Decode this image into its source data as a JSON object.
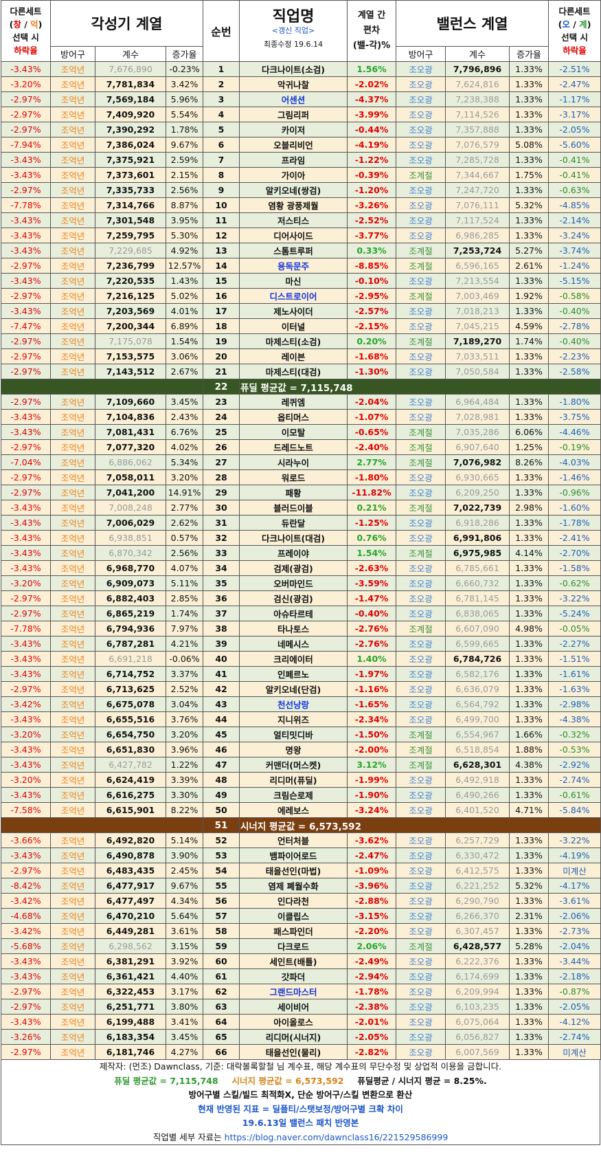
{
  "header": {
    "left_select": [
      "다른세트",
      "창",
      "/",
      "억",
      "선택 시",
      "하락율"
    ],
    "awaken_title": "각성기 계열",
    "order": "순번",
    "job_title": "직업명",
    "job_sub1": "<갱신 직업>",
    "job_sub2": "최종수정 19.6.14",
    "diff_title": [
      "계열 간",
      "편차",
      "(밸-각)%"
    ],
    "balance_title": "밸런스 계열",
    "right_select": [
      "다른세트",
      "오",
      "/",
      "계",
      "선택 시",
      "하락율"
    ],
    "sub_armor": "방어구",
    "sub_coef": "계수",
    "sub_rate": "증가율"
  },
  "rows": [
    [
      "-3.43%",
      "조억년",
      "7,676,890",
      "g",
      "-0.23%",
      "1",
      "다크나이트(소검)",
      "k",
      "1.56%",
      "조오광",
      "7,796,896",
      "b",
      "1.33%",
      "-2.51%"
    ],
    [
      "-3.20%",
      "조억년",
      "7,781,834",
      "b",
      "3.42%",
      "2",
      "악귀나찰",
      "k",
      "-2.02%",
      "조오광",
      "7,624,816",
      "g",
      "1.33%",
      "-2.47%"
    ],
    [
      "-2.97%",
      "조억년",
      "7,569,184",
      "b",
      "5.96%",
      "3",
      "어센션",
      "b",
      "-4.37%",
      "조오광",
      "7,238,388",
      "g",
      "1.33%",
      "-1.17%"
    ],
    [
      "-2.97%",
      "조억년",
      "7,409,920",
      "b",
      "5.54%",
      "4",
      "그림리퍼",
      "k",
      "-3.99%",
      "조오광",
      "7,114,526",
      "g",
      "1.33%",
      "-3.17%"
    ],
    [
      "-2.97%",
      "조억년",
      "7,390,292",
      "b",
      "1.78%",
      "5",
      "카이저",
      "k",
      "-0.44%",
      "조오광",
      "7,357,888",
      "g",
      "1.33%",
      "-2.05%"
    ],
    [
      "-7.94%",
      "조억년",
      "7,386,024",
      "b",
      "9.67%",
      "6",
      "오블리비언",
      "k",
      "-4.19%",
      "조오광",
      "7,076,579",
      "g",
      "5.08%",
      "-5.60%"
    ],
    [
      "-3.43%",
      "조억년",
      "7,375,921",
      "b",
      "2.59%",
      "7",
      "프라임",
      "k",
      "-1.22%",
      "조오광",
      "7,285,728",
      "g",
      "1.33%",
      "-0.41%"
    ],
    [
      "-3.43%",
      "조억년",
      "7,373,601",
      "b",
      "2.15%",
      "8",
      "가이아",
      "k",
      "-0.39%",
      "조계절",
      "7,344,667",
      "g",
      "1.75%",
      "-0.41%"
    ],
    [
      "-2.97%",
      "조억년",
      "7,335,733",
      "b",
      "2.56%",
      "9",
      "알키오네(쌍검)",
      "k",
      "-1.20%",
      "조오광",
      "7,247,720",
      "g",
      "1.33%",
      "-0.63%"
    ],
    [
      "-7.78%",
      "조억년",
      "7,314,766",
      "b",
      "8.87%",
      "10",
      "염황 광풍제월",
      "k",
      "-3.26%",
      "조오광",
      "7,076,111",
      "g",
      "5.32%",
      "-4.85%"
    ],
    [
      "-3.43%",
      "조억년",
      "7,301,548",
      "b",
      "3.95%",
      "11",
      "저스티스",
      "k",
      "-2.52%",
      "조오광",
      "7,117,524",
      "g",
      "1.33%",
      "-2.14%"
    ],
    [
      "-3.43%",
      "조억년",
      "7,259,795",
      "b",
      "5.30%",
      "12",
      "디어사이드",
      "k",
      "-3.77%",
      "조오광",
      "6,986,285",
      "g",
      "1.33%",
      "-3.24%"
    ],
    [
      "-3.43%",
      "조억년",
      "7,229,685",
      "g",
      "4.92%",
      "13",
      "스톰트루퍼",
      "k",
      "0.33%",
      "조계절",
      "7,253,724",
      "b",
      "5.27%",
      "-3.74%"
    ],
    [
      "-2.97%",
      "조억년",
      "7,236,799",
      "b",
      "12.57%",
      "14",
      "용독문주",
      "b",
      "-8.85%",
      "조계절",
      "6,596,165",
      "g",
      "2.61%",
      "-1.24%"
    ],
    [
      "-3.43%",
      "조억년",
      "7,220,535",
      "b",
      "1.43%",
      "15",
      "마신",
      "k",
      "-0.10%",
      "조오광",
      "7,213,554",
      "g",
      "1.33%",
      "-5.15%"
    ],
    [
      "-2.97%",
      "조억년",
      "7,216,125",
      "b",
      "5.02%",
      "16",
      "디스트로이어",
      "b",
      "-2.95%",
      "조계절",
      "7,003,469",
      "g",
      "1.92%",
      "-0.58%"
    ],
    [
      "-3.43%",
      "조억년",
      "7,203,569",
      "b",
      "4.01%",
      "17",
      "제노사이더",
      "k",
      "-2.57%",
      "조오광",
      "7,018,213",
      "g",
      "1.33%",
      "-0.40%"
    ],
    [
      "-7.47%",
      "조억년",
      "7,200,344",
      "b",
      "6.89%",
      "18",
      "이터널",
      "k",
      "-2.15%",
      "조오광",
      "7,045,215",
      "g",
      "4.59%",
      "-2.78%"
    ],
    [
      "-2.97%",
      "조억년",
      "7,175,078",
      "g",
      "1.54%",
      "19",
      "마제스티(소검)",
      "k",
      "0.20%",
      "조계절",
      "7,189,270",
      "b",
      "1.74%",
      "-0.40%"
    ],
    [
      "-2.97%",
      "조억년",
      "7,153,575",
      "b",
      "3.06%",
      "20",
      "레이븐",
      "k",
      "-1.68%",
      "조오광",
      "7,033,511",
      "g",
      "1.33%",
      "-2.23%"
    ],
    [
      "-2.97%",
      "조억년",
      "7,143,512",
      "b",
      "2.67%",
      "21",
      "마제스티(대검)",
      "k",
      "-1.30%",
      "조오광",
      "7,050,584",
      "g",
      "1.33%",
      "-2.58%"
    ],
    [
      "AVG1"
    ],
    [
      "-2.97%",
      "조억년",
      "7,109,660",
      "b",
      "3.45%",
      "23",
      "레퀴엠",
      "k",
      "-2.04%",
      "조오광",
      "6,964,484",
      "g",
      "1.33%",
      "-1.80%"
    ],
    [
      "-3.43%",
      "조억년",
      "7,104,836",
      "b",
      "2.43%",
      "24",
      "옵티머스",
      "k",
      "-1.07%",
      "조오광",
      "7,028,981",
      "g",
      "1.33%",
      "-3.75%"
    ],
    [
      "-3.43%",
      "조억년",
      "7,081,431",
      "b",
      "6.76%",
      "25",
      "이모탈",
      "k",
      "-0.65%",
      "조계절",
      "7,035,286",
      "g",
      "6.06%",
      "-4.46%"
    ],
    [
      "-2.97%",
      "조억년",
      "7,077,320",
      "b",
      "4.02%",
      "26",
      "드레드노트",
      "k",
      "-2.40%",
      "조계절",
      "6,907,640",
      "g",
      "1.25%",
      "-0.19%"
    ],
    [
      "-7.04%",
      "조억년",
      "6,886,062",
      "g",
      "5.34%",
      "27",
      "시라누이",
      "k",
      "2.77%",
      "조계절",
      "7,076,982",
      "b",
      "8.26%",
      "-4.03%"
    ],
    [
      "-2.97%",
      "조억년",
      "7,058,011",
      "b",
      "3.20%",
      "28",
      "워로드",
      "k",
      "-1.80%",
      "조오광",
      "6,930,665",
      "g",
      "1.33%",
      "-1.46%"
    ],
    [
      "-2.97%",
      "조억년",
      "7,041,200",
      "b",
      "14.91%",
      "29",
      "패황",
      "k",
      "-11.82%",
      "조오광",
      "6,209,250",
      "g",
      "1.33%",
      "-0.96%"
    ],
    [
      "-3.43%",
      "조억년",
      "7,008,248",
      "g",
      "2.77%",
      "30",
      "블러드이블",
      "k",
      "0.21%",
      "조계절",
      "7,022,739",
      "b",
      "2.98%",
      "-1.60%"
    ],
    [
      "-3.43%",
      "조억년",
      "7,006,029",
      "b",
      "2.62%",
      "31",
      "듀란달",
      "k",
      "-1.25%",
      "조오광",
      "6,918,286",
      "g",
      "1.33%",
      "-1.78%"
    ],
    [
      "-3.43%",
      "조억년",
      "6,938,851",
      "g",
      "0.57%",
      "32",
      "다크나이트(대검)",
      "k",
      "0.76%",
      "조오광",
      "6,991,806",
      "b",
      "1.33%",
      "-2.41%"
    ],
    [
      "-3.43%",
      "조억년",
      "6,870,342",
      "g",
      "2.56%",
      "33",
      "프레이야",
      "k",
      "1.54%",
      "조계절",
      "6,975,985",
      "b",
      "4.14%",
      "-2.70%"
    ],
    [
      "-3.43%",
      "조억년",
      "6,968,770",
      "b",
      "4.07%",
      "34",
      "검제(광검)",
      "k",
      "-2.63%",
      "조오광",
      "6,785,661",
      "g",
      "1.33%",
      "-1.58%"
    ],
    [
      "-3.20%",
      "조억년",
      "6,909,073",
      "b",
      "5.11%",
      "35",
      "오버마인드",
      "k",
      "-3.59%",
      "조오광",
      "6,660,732",
      "g",
      "1.33%",
      "-0.62%"
    ],
    [
      "-2.97%",
      "조억년",
      "6,882,403",
      "b",
      "2.85%",
      "36",
      "검신(광검)",
      "k",
      "-1.47%",
      "조오광",
      "6,781,145",
      "g",
      "1.33%",
      "-3.22%"
    ],
    [
      "-2.97%",
      "조억년",
      "6,865,219",
      "b",
      "1.74%",
      "37",
      "아슈타르테",
      "k",
      "-0.40%",
      "조오광",
      "6,838,065",
      "g",
      "1.33%",
      "-5.24%"
    ],
    [
      "-7.78%",
      "조억년",
      "6,794,936",
      "b",
      "7.97%",
      "38",
      "타나토스",
      "k",
      "-2.76%",
      "조계절",
      "6,607,090",
      "g",
      "4.98%",
      "-0.05%"
    ],
    [
      "-3.43%",
      "조억년",
      "6,787,281",
      "b",
      "4.21%",
      "39",
      "네메시스",
      "k",
      "-2.76%",
      "조오광",
      "6,599,665",
      "g",
      "1.33%",
      "-2.27%"
    ],
    [
      "-3.43%",
      "조억년",
      "6,691,218",
      "g",
      "-0.06%",
      "40",
      "크리에이터",
      "k",
      "1.40%",
      "조오광",
      "6,784,726",
      "b",
      "1.33%",
      "-1.51%"
    ],
    [
      "-3.43%",
      "조억년",
      "6,714,752",
      "b",
      "3.37%",
      "41",
      "인페르노",
      "k",
      "-1.97%",
      "조오광",
      "6,582,176",
      "g",
      "1.33%",
      "-1.61%"
    ],
    [
      "-2.97%",
      "조억년",
      "6,713,625",
      "b",
      "2.52%",
      "42",
      "알키오네(단검)",
      "k",
      "-1.16%",
      "조오광",
      "6,636,079",
      "g",
      "1.33%",
      "-1.63%"
    ],
    [
      "-3.42%",
      "조억년",
      "6,675,078",
      "b",
      "3.04%",
      "43",
      "천선낭랑",
      "b",
      "-1.65%",
      "조오광",
      "6,564,792",
      "g",
      "1.33%",
      "-2.98%"
    ],
    [
      "-3.43%",
      "조억년",
      "6,655,516",
      "b",
      "3.76%",
      "44",
      "지니위즈",
      "k",
      "-2.34%",
      "조오광",
      "6,499,700",
      "g",
      "1.33%",
      "-4.38%"
    ],
    [
      "-3.20%",
      "조억년",
      "6,654,750",
      "b",
      "3.20%",
      "45",
      "얼티밋디바",
      "k",
      "-1.50%",
      "조계절",
      "6,554,967",
      "g",
      "1.66%",
      "-0.32%"
    ],
    [
      "-3.43%",
      "조억년",
      "6,651,830",
      "b",
      "3.96%",
      "46",
      "명왕",
      "k",
      "-2.00%",
      "조계절",
      "6,518,854",
      "g",
      "1.88%",
      "-0.53%"
    ],
    [
      "-3.43%",
      "조억년",
      "6,427,782",
      "g",
      "1.22%",
      "47",
      "커맨더(머스켓)",
      "k",
      "3.12%",
      "조계절",
      "6,628,301",
      "b",
      "4.38%",
      "-2.92%"
    ],
    [
      "-3.20%",
      "조억년",
      "6,624,419",
      "b",
      "3.39%",
      "48",
      "리디머(퓨딜)",
      "k",
      "-1.99%",
      "조오광",
      "6,492,918",
      "g",
      "1.33%",
      "-2.74%"
    ],
    [
      "-3.43%",
      "조억년",
      "6,616,275",
      "b",
      "3.30%",
      "49",
      "크림슨로제",
      "k",
      "-1.90%",
      "조오광",
      "6,490,266",
      "g",
      "1.33%",
      "-0.61%"
    ],
    [
      "-7.58%",
      "조억년",
      "6,615,901",
      "b",
      "8.22%",
      "50",
      "에레보스",
      "k",
      "-3.24%",
      "조오광",
      "6,401,520",
      "g",
      "4.71%",
      "-5.84%"
    ],
    [
      "AVG2"
    ],
    [
      "-3.66%",
      "조억년",
      "6,492,820",
      "b",
      "5.14%",
      "52",
      "언터처블",
      "k",
      "-3.62%",
      "조오광",
      "6,257,729",
      "g",
      "1.33%",
      "-3.22%"
    ],
    [
      "-3.43%",
      "조억년",
      "6,490,878",
      "b",
      "3.90%",
      "53",
      "뱀파이어로드",
      "k",
      "-2.47%",
      "조오광",
      "6,330,472",
      "g",
      "1.33%",
      "-4.19%"
    ],
    [
      "-2.97%",
      "조억년",
      "6,483,435",
      "b",
      "2.45%",
      "54",
      "태을선인(마법)",
      "k",
      "-1.09%",
      "조오광",
      "6,412,575",
      "g",
      "1.33%",
      "미계산"
    ],
    [
      "-8.42%",
      "조억년",
      "6,477,917",
      "b",
      "9.67%",
      "55",
      "염제 폐월수화",
      "k",
      "-3.96%",
      "조오광",
      "6,221,252",
      "g",
      "5.32%",
      "-4.17%"
    ],
    [
      "-3.42%",
      "조억년",
      "6,477,497",
      "b",
      "4.34%",
      "56",
      "인다라천",
      "k",
      "-2.88%",
      "조오광",
      "6,290,790",
      "g",
      "1.33%",
      "-3.61%"
    ],
    [
      "-4.68%",
      "조억년",
      "6,470,210",
      "b",
      "5.64%",
      "57",
      "이클립스",
      "k",
      "-3.15%",
      "조오광",
      "6,266,370",
      "g",
      "2.31%",
      "-2.06%"
    ],
    [
      "-3.42%",
      "조억년",
      "6,449,281",
      "b",
      "3.61%",
      "58",
      "패스파인더",
      "k",
      "-2.20%",
      "조오광",
      "6,307,457",
      "g",
      "1.33%",
      "-2.73%"
    ],
    [
      "-5.68%",
      "조억년",
      "6,298,562",
      "g",
      "3.15%",
      "59",
      "다크로드",
      "k",
      "2.06%",
      "조계절",
      "6,428,577",
      "b",
      "5.28%",
      "-2.04%"
    ],
    [
      "-3.43%",
      "조억년",
      "6,381,291",
      "b",
      "3.92%",
      "60",
      "세인트(배틀)",
      "k",
      "-2.49%",
      "조오광",
      "6,222,376",
      "g",
      "1.33%",
      "-3.44%"
    ],
    [
      "-3.43%",
      "조억년",
      "6,361,421",
      "b",
      "4.40%",
      "61",
      "갓파더",
      "k",
      "-2.94%",
      "조오광",
      "6,174,699",
      "g",
      "1.33%",
      "-2.18%"
    ],
    [
      "-2.97%",
      "조억년",
      "6,322,453",
      "b",
      "3.17%",
      "62",
      "그랜드마스터",
      "b",
      "-1.78%",
      "조오광",
      "6,209,994",
      "g",
      "1.33%",
      "-0.87%"
    ],
    [
      "-2.97%",
      "조억년",
      "6,251,771",
      "b",
      "3.80%",
      "63",
      "세이비어",
      "k",
      "-2.38%",
      "조오광",
      "6,103,235",
      "g",
      "1.33%",
      "-2.05%"
    ],
    [
      "-3.43%",
      "조억년",
      "6,199,488",
      "b",
      "3.41%",
      "64",
      "아이올로스",
      "k",
      "-2.01%",
      "조오광",
      "6,075,064",
      "g",
      "1.33%",
      "-4.12%"
    ],
    [
      "-3.26%",
      "조억년",
      "6,183,354",
      "b",
      "3.45%",
      "65",
      "리디머(시너지)",
      "k",
      "-2.05%",
      "조오광",
      "6,056,827",
      "g",
      "1.33%",
      "-2.74%"
    ],
    [
      "-2.97%",
      "조억년",
      "6,181,746",
      "b",
      "4.27%",
      "66",
      "태을선인(물리)",
      "k",
      "-2.82%",
      "조오광",
      "6,007,569",
      "g",
      "1.33%",
      "미계산"
    ]
  ],
  "avg1": {
    "num": "22",
    "text": "퓨딜 평균값 = 7,115,748"
  },
  "avg2": {
    "num": "51",
    "text": "시너지 평균값 = 6,573,592"
  },
  "footer": {
    "line1": "제작자: (먼조) Dawnclass, 기준: 대락볼록할철 님 계수표, 해당 계수표의 무단수정 및 상업적 이용을 금합니다.",
    "line2a": "퓨딜 평균값 = 7,115,748",
    "line2b": "시너지 평균값 = 6,573,592",
    "line2c": "퓨딜평균 / 시너지 평균 = 8.25%.",
    "line3": "방어구별 스킬/빌드 최적화X, 단순 방어구/스킬 변환으로 환산",
    "line4": "현재 반영된 지표 = 딜플티/스탯보정/방어구별 크확 차이",
    "line5": "19.6.13일 밸런스 패치 반영본",
    "line6a": "직업별 세부 자료는 ",
    "line6b": "https://blog.naver.com/dawnclass16/221529586999"
  },
  "colors": {
    "green_row": "#e7efdc",
    "yellow_row": "#fbf0d6",
    "avg1_bg": "#375623",
    "avg2_bg": "#7a3f10"
  }
}
